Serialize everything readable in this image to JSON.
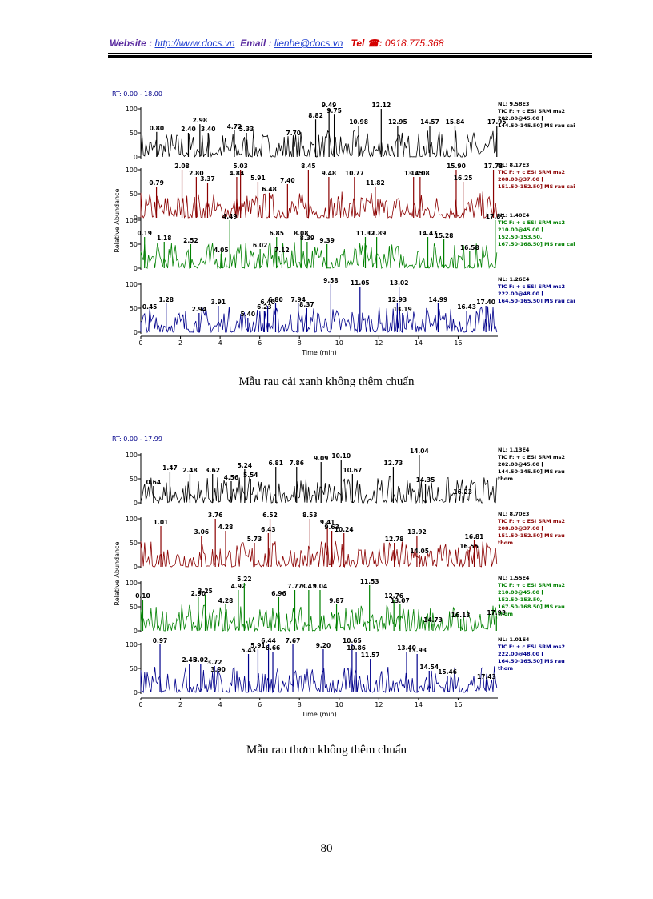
{
  "header": {
    "website_label": "Website :",
    "website": "http://www.docs.vn",
    "email_label": "Email :",
    "email": "lienhe@docs.vn",
    "tel_label": "Tel ☎:",
    "tel": "0918.775.368"
  },
  "figures": [
    {
      "rt_range": "RT: 0.00 - 18.00",
      "y_label": "Relative Abundance",
      "x_label": "Time (min)",
      "xlim": [
        0,
        18
      ],
      "xticks": [
        0,
        2,
        4,
        6,
        8,
        10,
        12,
        14,
        16
      ],
      "ylim": [
        0,
        100
      ],
      "yticks": [
        0,
        50,
        100
      ],
      "panels": [
        {
          "color": "#000000",
          "info": [
            "NL: 9.58E3",
            "TIC F: + c ESI SRM ms2",
            "202.00@45.00 [",
            "144.50-145.50]  MS rau cai"
          ],
          "peaks": {
            "labels": [
              "0.80",
              "2.40",
              "2.98",
              "3.40",
              "4.72",
              "5.33",
              "7.70",
              "8.82",
              "9.49",
              "9.75",
              "10.98",
              "12.12",
              "12.95",
              "14.57",
              "15.84",
              "17.95"
            ],
            "rt": [
              0.8,
              2.4,
              2.98,
              3.4,
              4.72,
              5.33,
              7.7,
              8.82,
              9.49,
              9.75,
              10.98,
              12.12,
              12.95,
              14.57,
              15.84,
              17.95
            ],
            "abundance": [
              52,
              50,
              68,
              50,
              55,
              50,
              42,
              78,
              100,
              88,
              65,
              100,
              65,
              65,
              65,
              65
            ]
          }
        },
        {
          "color": "#8b0000",
          "info": [
            "NL: 8.17E3",
            "TIC F: + c ESI SRM ms2",
            "208.00@37.00 [",
            "151.50-152.50]  MS rau cai"
          ],
          "peaks": {
            "labels": [
              "0.79",
              "2.08",
              "2.80",
              "3.37",
              "4.84",
              "5.03",
              "5.91",
              "6.48",
              "7.40",
              "8.45",
              "9.48",
              "10.77",
              "11.82",
              "13.75",
              "14.08",
              "15.90",
              "16.25",
              "17.78"
            ],
            "rt": [
              0.79,
              2.08,
              2.8,
              3.37,
              4.84,
              5.03,
              5.91,
              6.48,
              7.4,
              8.45,
              9.48,
              10.77,
              11.82,
              13.75,
              14.08,
              15.9,
              16.25,
              17.78
            ],
            "abundance": [
              65,
              100,
              85,
              73,
              85,
              100,
              75,
              52,
              70,
              100,
              85,
              85,
              65,
              85,
              85,
              100,
              75,
              100
            ]
          }
        },
        {
          "color": "#008000",
          "info": [
            "NL: 1.40E4",
            "TIC F: + c ESI SRM ms2",
            "210.00@45.00 [",
            "152.50-153.50,",
            "167.50-168.50]  MS rau cai"
          ],
          "peaks": {
            "labels": [
              "0.19",
              "1.18",
              "2.52",
              "4.05",
              "4.49",
              "6.02",
              "6.85",
              "7.12",
              "8.08",
              "8.39",
              "9.39",
              "11.32",
              "11.89",
              "14.47",
              "15.28",
              "16.58",
              "17.87"
            ],
            "rt": [
              0.19,
              1.18,
              2.52,
              4.05,
              4.49,
              6.02,
              6.85,
              7.12,
              8.08,
              8.39,
              9.39,
              11.32,
              11.89,
              14.47,
              15.28,
              16.58,
              17.87
            ],
            "abundance": [
              65,
              55,
              50,
              30,
              100,
              40,
              65,
              30,
              65,
              55,
              50,
              65,
              65,
              65,
              60,
              35,
              100
            ]
          }
        },
        {
          "color": "#00008b",
          "info": [
            "NL: 1.26E4",
            "TIC F: + c ESI SRM ms2",
            "222.00@48.00 [",
            "164.50-165.50]  MS rau cai"
          ],
          "peaks": {
            "labels": [
              "0.45",
              "1.28",
              "2.94",
              "3.91",
              "5.40",
              "6.23",
              "6.40",
              "6.80",
              "7.94",
              "8.37",
              "9.58",
              "11.05",
              "12.93",
              "13.02",
              "13.19",
              "14.99",
              "16.43",
              "17.40"
            ],
            "rt": [
              0.45,
              1.28,
              2.94,
              3.91,
              5.4,
              6.23,
              6.4,
              6.8,
              7.94,
              8.37,
              9.58,
              11.05,
              12.93,
              13.02,
              13.19,
              14.99,
              16.43,
              17.4
            ],
            "abundance": [
              45,
              60,
              40,
              55,
              30,
              45,
              55,
              60,
              60,
              50,
              100,
              95,
              60,
              95,
              40,
              60,
              45,
              55
            ]
          }
        }
      ],
      "caption": "Mẫu rau cải xanh không thêm chuẩn"
    },
    {
      "rt_range": "RT: 0.00 - 17.99",
      "y_label": "Relative Abundance",
      "x_label": "Time (min)",
      "xlim": [
        0,
        18
      ],
      "xticks": [
        0,
        2,
        4,
        6,
        8,
        10,
        12,
        14,
        16
      ],
      "ylim": [
        0,
        100
      ],
      "yticks": [
        0,
        50,
        100
      ],
      "panels": [
        {
          "color": "#000000",
          "info": [
            "NL: 1.13E4",
            "TIC F: + c ESI SRM ms2",
            "202.00@45.00 [",
            "144.50-145.50]  MS rau",
            "thom"
          ],
          "peaks": {
            "labels": [
              "0.64",
              "1.47",
              "2.48",
              "3.62",
              "4.56",
              "5.24",
              "5.54",
              "6.81",
              "7.86",
              "9.09",
              "10.10",
              "10.67",
              "12.73",
              "14.04",
              "14.35",
              "16.23"
            ],
            "rt": [
              0.64,
              1.47,
              2.48,
              3.62,
              4.56,
              5.24,
              5.54,
              6.81,
              7.86,
              9.09,
              10.1,
              10.67,
              12.73,
              14.04,
              14.35,
              16.23
            ],
            "abundance": [
              35,
              65,
              60,
              60,
              45,
              70,
              50,
              75,
              75,
              85,
              90,
              60,
              75,
              100,
              40,
              15
            ]
          }
        },
        {
          "color": "#8b0000",
          "info": [
            "NL: 8.70E3",
            "TIC F: + c ESI SRM ms2",
            "208.00@37.00 [",
            "151.50-152.50]  MS rau",
            "thom"
          ],
          "peaks": {
            "labels": [
              "1.01",
              "3.06",
              "3.76",
              "4.28",
              "5.73",
              "6.43",
              "6.52",
              "8.53",
              "9.41",
              "9.63",
              "10.24",
              "12.78",
              "13.92",
              "14.05",
              "16.55",
              "16.81"
            ],
            "rt": [
              1.01,
              3.06,
              3.76,
              4.28,
              5.73,
              6.43,
              6.52,
              8.53,
              9.41,
              9.63,
              10.24,
              12.78,
              13.92,
              14.05,
              16.55,
              16.81
            ],
            "abundance": [
              85,
              65,
              100,
              75,
              50,
              70,
              100,
              100,
              85,
              75,
              70,
              50,
              65,
              25,
              35,
              55
            ]
          }
        },
        {
          "color": "#008000",
          "info": [
            "NL: 1.55E4",
            "TIC F: + c ESI SRM ms2",
            "210.00@45.00 [",
            "152.50-153.50,",
            "167.50-168.50]  MS rau",
            "thom"
          ],
          "peaks": {
            "labels": [
              "0.10",
              "2.90",
              "3.25",
              "4.28",
              "4.92",
              "5.22",
              "6.96",
              "7.77",
              "8.47",
              "9.04",
              "9.87",
              "11.53",
              "12.76",
              "13.07",
              "14.73",
              "16.13",
              "17.93"
            ],
            "rt": [
              0.1,
              2.9,
              3.25,
              4.28,
              4.92,
              5.22,
              6.96,
              7.77,
              8.47,
              9.04,
              9.87,
              11.53,
              12.76,
              13.07,
              14.73,
              16.13,
              17.93
            ],
            "abundance": [
              65,
              70,
              75,
              55,
              85,
              100,
              70,
              85,
              85,
              85,
              55,
              95,
              65,
              55,
              15,
              25,
              30
            ]
          }
        },
        {
          "color": "#00008b",
          "info": [
            "NL: 1.01E4",
            "TIC F: + c ESI SRM ms2",
            "222.00@48.00 [",
            "164.50-165.50]  MS rau",
            "thom"
          ],
          "peaks": {
            "labels": [
              "0.97",
              "2.45",
              "3.02",
              "3.72",
              "3.90",
              "5.43",
              "5.91",
              "6.44",
              "6.66",
              "7.67",
              "9.20",
              "10.65",
              "10.86",
              "11.57",
              "13.40",
              "13.93",
              "14.54",
              "15.46",
              "17.43"
            ],
            "rt": [
              0.97,
              2.45,
              3.02,
              3.72,
              3.9,
              5.43,
              5.91,
              6.44,
              6.66,
              7.67,
              9.2,
              10.65,
              10.86,
              11.57,
              13.4,
              13.93,
              14.54,
              15.46,
              17.43
            ],
            "abundance": [
              100,
              60,
              60,
              55,
              40,
              80,
              90,
              100,
              85,
              100,
              90,
              100,
              85,
              70,
              85,
              80,
              45,
              35,
              25
            ]
          }
        }
      ],
      "caption": "Mẫu rau thơm không thêm chuẩn"
    }
  ],
  "page_number": "80"
}
